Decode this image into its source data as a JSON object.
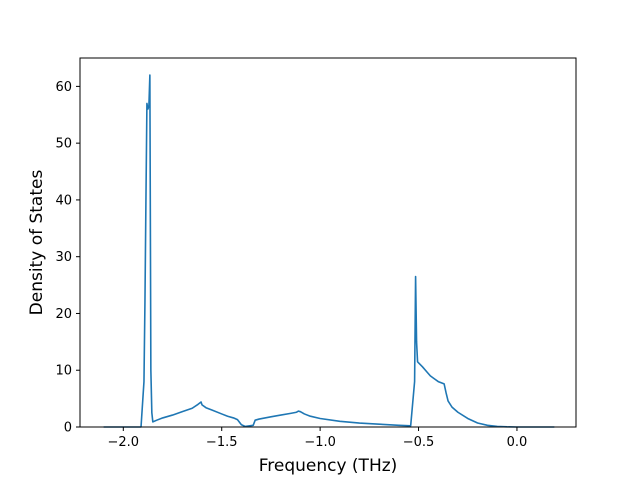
{
  "chart_data": {
    "type": "line",
    "title": "",
    "xlabel": "Frequency (THz)",
    "ylabel": "Density of States",
    "xlim": [
      -2.22,
      0.3
    ],
    "ylim": [
      0,
      65
    ],
    "grid": false,
    "x_ticks": [
      -2.0,
      -1.5,
      -1.0,
      -0.5,
      0.0
    ],
    "x_tick_labels": [
      "−2.0",
      "−1.5",
      "−1.0",
      "−0.5",
      "0.0"
    ],
    "y_ticks": [
      0,
      10,
      20,
      30,
      40,
      50,
      60
    ],
    "y_tick_labels": [
      "0",
      "10",
      "20",
      "30",
      "40",
      "50",
      "60"
    ],
    "series": [
      {
        "color": "#1f77b4",
        "x": [
          -2.1,
          -1.96,
          -1.91,
          -1.895,
          -1.89,
          -1.885,
          -1.88,
          -1.875,
          -1.87,
          -1.865,
          -1.86,
          -1.855,
          -1.85,
          -1.83,
          -1.8,
          -1.75,
          -1.7,
          -1.65,
          -1.62,
          -1.605,
          -1.6,
          -1.58,
          -1.55,
          -1.5,
          -1.47,
          -1.44,
          -1.42,
          -1.4,
          -1.38,
          -1.34,
          -1.33,
          -1.31,
          -1.25,
          -1.2,
          -1.15,
          -1.12,
          -1.11,
          -1.1,
          -1.08,
          -1.05,
          -1.0,
          -0.9,
          -0.8,
          -0.7,
          -0.6,
          -0.54,
          -0.52,
          -0.515,
          -0.51,
          -0.505,
          -0.5,
          -0.48,
          -0.46,
          -0.44,
          -0.42,
          -0.4,
          -0.37,
          -0.36,
          -0.35,
          -0.33,
          -0.3,
          -0.25,
          -0.2,
          -0.15,
          -0.1,
          -0.05,
          0.0,
          0.1,
          0.19
        ],
        "y": [
          0,
          0,
          0,
          8,
          22,
          40,
          57,
          56,
          56.5,
          62,
          10,
          2.5,
          0.9,
          1.2,
          1.6,
          2.1,
          2.7,
          3.3,
          4.0,
          4.4,
          3.9,
          3.4,
          3.0,
          2.3,
          1.9,
          1.6,
          1.3,
          0.4,
          0.1,
          0.3,
          1.2,
          1.4,
          1.8,
          2.1,
          2.4,
          2.6,
          2.8,
          2.7,
          2.3,
          1.9,
          1.5,
          1.0,
          0.7,
          0.5,
          0.3,
          0.2,
          8,
          26.5,
          15,
          11.5,
          11.3,
          10.6,
          9.8,
          9.0,
          8.5,
          8.0,
          7.6,
          6.0,
          4.6,
          3.5,
          2.6,
          1.5,
          0.7,
          0.3,
          0.1,
          0.03,
          0,
          0,
          0
        ]
      }
    ]
  }
}
